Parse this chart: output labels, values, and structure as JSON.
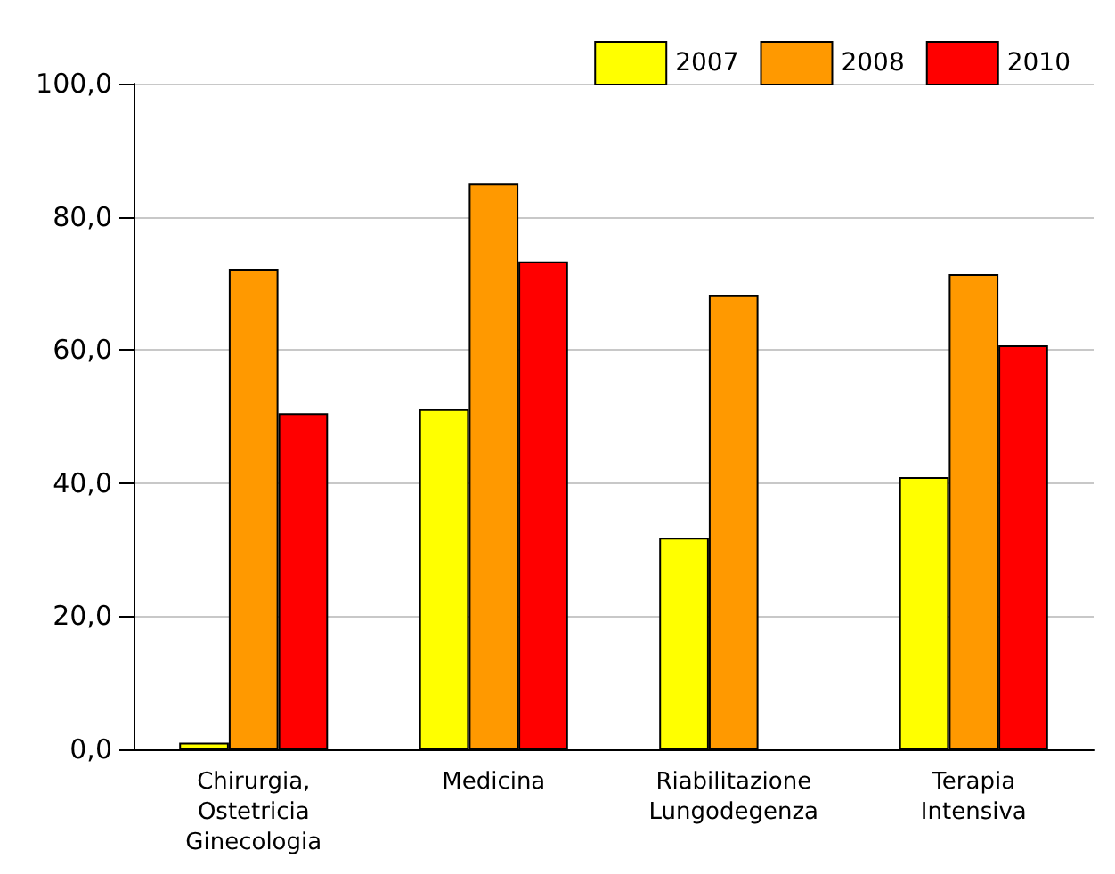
{
  "chart_data": {
    "type": "bar",
    "categories": [
      "Chirurgia,\nOstetricia\nGinecologia",
      "Medicina",
      "Riabilitazione\nLungodegenza",
      "Terapia\nIntensiva"
    ],
    "series": [
      {
        "name": "2007",
        "color": "#ffff00",
        "values": [
          1.0,
          51.1,
          31.8,
          40.9
        ]
      },
      {
        "name": "2008",
        "color": "#ff9900",
        "values": [
          72.2,
          85.0,
          68.2,
          71.4
        ]
      },
      {
        "name": "2010",
        "color": "#ff0000",
        "values": [
          50.5,
          73.3,
          null,
          60.7
        ]
      }
    ],
    "ylim": [
      0,
      100
    ],
    "yticks": [
      {
        "value": 0,
        "label": "0,0"
      },
      {
        "value": 20,
        "label": "20,0"
      },
      {
        "value": 40,
        "label": "40,0"
      },
      {
        "value": 60,
        "label": "60,0"
      },
      {
        "value": 80,
        "label": "80,0"
      },
      {
        "value": 100,
        "label": "100,0"
      }
    ],
    "grid": "y",
    "legend": "top right"
  }
}
